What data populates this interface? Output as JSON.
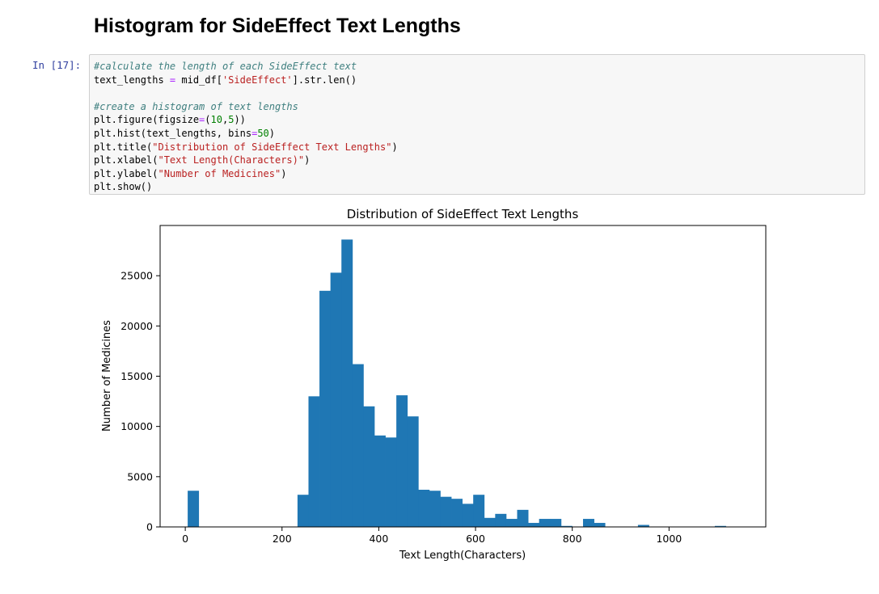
{
  "notebook": {
    "heading": "Histogram for SideEffect Text Lengths",
    "prompt": "In [17]:",
    "code_lines": [
      [
        {
          "t": "#calculate the length of each SideEffect text",
          "k": "com"
        }
      ],
      [
        {
          "t": "text_lengths ",
          "k": ""
        },
        {
          "t": "=",
          "k": "op"
        },
        {
          "t": " mid_df[",
          "k": ""
        },
        {
          "t": "'SideEffect'",
          "k": "str"
        },
        {
          "t": "].str.len()",
          "k": ""
        }
      ],
      [],
      [
        {
          "t": "#create a histogram of text lengths",
          "k": "com"
        }
      ],
      [
        {
          "t": "plt.figure(figsize",
          "k": ""
        },
        {
          "t": "=",
          "k": "op"
        },
        {
          "t": "(",
          "k": ""
        },
        {
          "t": "10",
          "k": "num"
        },
        {
          "t": ",",
          "k": ""
        },
        {
          "t": "5",
          "k": "num"
        },
        {
          "t": "))",
          "k": ""
        }
      ],
      [
        {
          "t": "plt.hist(text_lengths, bins",
          "k": ""
        },
        {
          "t": "=",
          "k": "op"
        },
        {
          "t": "50",
          "k": "num"
        },
        {
          "t": ")",
          "k": ""
        }
      ],
      [
        {
          "t": "plt.title(",
          "k": ""
        },
        {
          "t": "\"Distribution of SideEffect Text Lengths\"",
          "k": "str"
        },
        {
          "t": ")",
          "k": ""
        }
      ],
      [
        {
          "t": "plt.xlabel(",
          "k": ""
        },
        {
          "t": "\"Text Length(Characters)\"",
          "k": "str"
        },
        {
          "t": ")",
          "k": ""
        }
      ],
      [
        {
          "t": "plt.ylabel(",
          "k": ""
        },
        {
          "t": "\"Number of Medicines\"",
          "k": "str"
        },
        {
          "t": ")",
          "k": ""
        }
      ],
      [
        {
          "t": "plt.show()",
          "k": ""
        }
      ]
    ]
  },
  "chart_data": {
    "type": "bar",
    "title": "Distribution of SideEffect Text Lengths",
    "xlabel": "Text Length(Characters)",
    "ylabel": "Number of Medicines",
    "xlim": [
      -52,
      1200
    ],
    "ylim": [
      0,
      30000
    ],
    "xticks": [
      0,
      200,
      400,
      600,
      800,
      1000
    ],
    "yticks": [
      0,
      5000,
      10000,
      15000,
      20000,
      25000
    ],
    "bin_width": 22.7,
    "bin_starts": [
      5,
      27.7,
      50.4,
      73.1,
      95.8,
      118.5,
      141.2,
      163.9,
      186.6,
      209.3,
      232,
      254.7,
      277.4,
      300.1,
      322.8,
      345.5,
      368.2,
      390.9,
      413.6,
      436.3,
      459,
      481.7,
      504.4,
      527.1,
      549.8,
      572.5,
      595.2,
      617.9,
      640.6,
      663.3,
      686,
      708.7,
      731.4,
      754.1,
      776.8,
      799.5,
      822.2,
      844.9,
      867.6,
      890.3,
      913,
      935.7,
      958.4,
      981.1,
      1003.8,
      1026.5,
      1049.2,
      1071.9,
      1094.6,
      1117.3
    ],
    "values": [
      3600,
      0,
      0,
      0,
      0,
      0,
      0,
      0,
      0,
      0,
      3200,
      13000,
      23500,
      25300,
      28600,
      16200,
      12000,
      9100,
      8900,
      13100,
      11000,
      3700,
      3600,
      3000,
      2800,
      2300,
      3200,
      900,
      1300,
      800,
      1700,
      400,
      800,
      800,
      100,
      0,
      800,
      400,
      0,
      0,
      0,
      200,
      0,
      0,
      0,
      0,
      0,
      0,
      100,
      0
    ],
    "bar_color": "#1f77b4"
  }
}
